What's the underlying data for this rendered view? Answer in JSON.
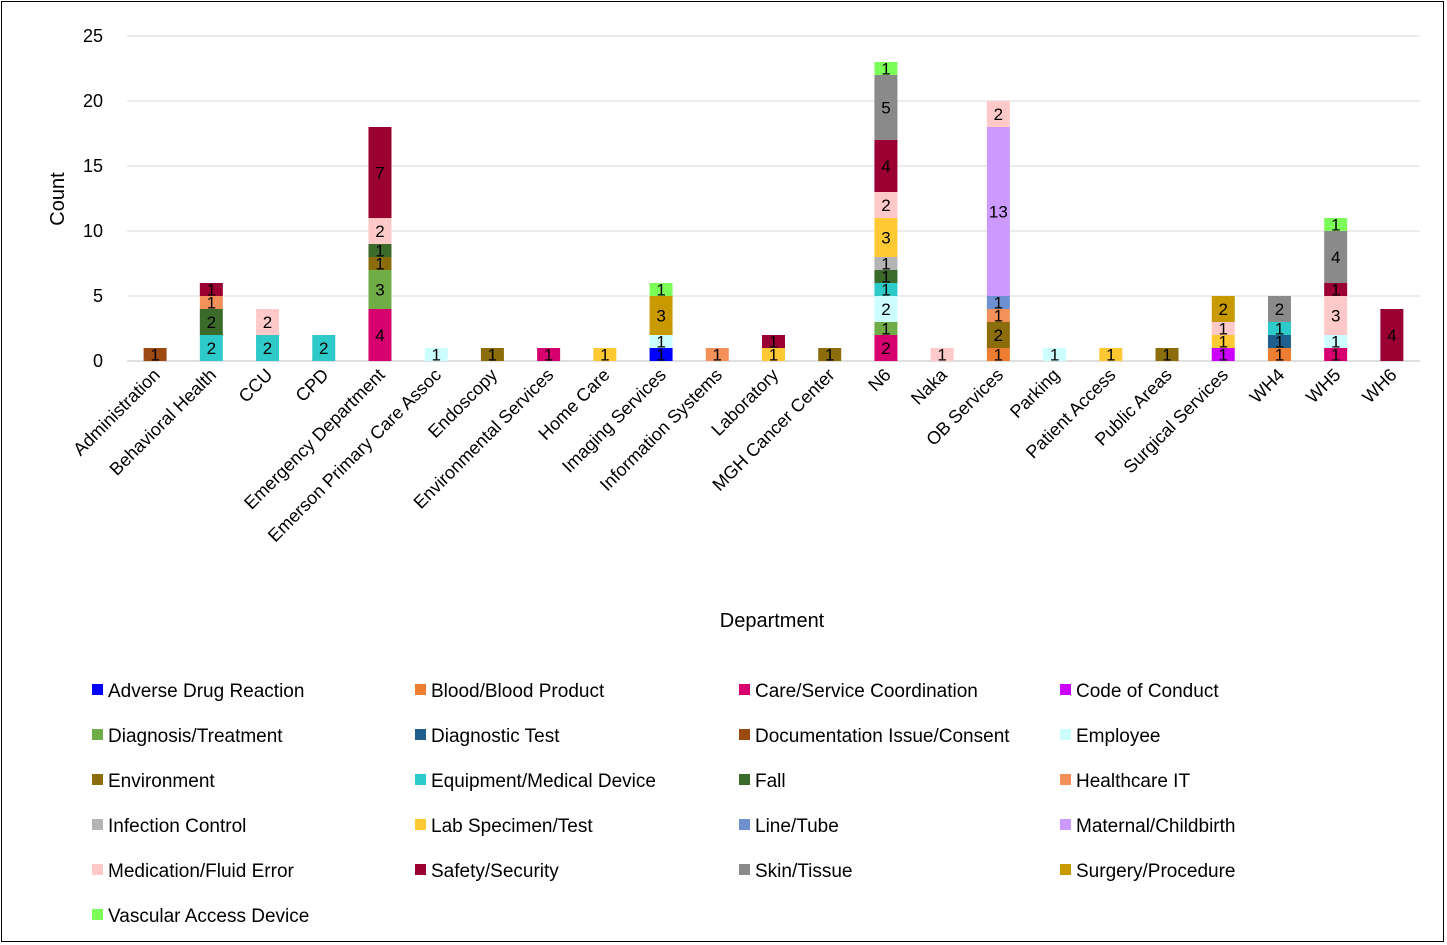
{
  "chart_data": {
    "type": "bar",
    "stacked": true,
    "xlabel": "Department",
    "ylabel": "Count",
    "ylim": [
      0,
      25
    ],
    "yticks": [
      0,
      5,
      10,
      15,
      20,
      25
    ],
    "grid": true,
    "legend_position": "bottom",
    "categories": [
      "Administration",
      "Behavioral Health",
      "CCU",
      "CPD",
      "Emergency Department",
      "Emerson Primary Care Assoc",
      "Endoscopy",
      "Environmental Services",
      "Home Care",
      "Imaging Services",
      "Information Systems",
      "Laboratory",
      "MGH Cancer Center",
      "N6",
      "Naka",
      "OB Services",
      "Parking",
      "Patient Access",
      "Public Areas",
      "Surgical Services",
      "WH4",
      "WH5",
      "WH6"
    ],
    "series": [
      {
        "name": "Adverse Drug Reaction",
        "color": "#0000ff",
        "values": [
          0,
          0,
          0,
          0,
          0,
          0,
          0,
          0,
          0,
          1,
          0,
          0,
          0,
          0,
          0,
          0,
          0,
          0,
          0,
          0,
          0,
          0,
          0
        ]
      },
      {
        "name": "Blood/Blood Product",
        "color": "#ed7d31",
        "values": [
          0,
          0,
          0,
          0,
          0,
          0,
          0,
          0,
          0,
          0,
          0,
          0,
          0,
          0,
          0,
          1,
          0,
          0,
          0,
          0,
          1,
          0,
          0
        ]
      },
      {
        "name": "Care/Service Coordination",
        "color": "#d6006f",
        "values": [
          0,
          0,
          0,
          0,
          4,
          0,
          0,
          1,
          0,
          0,
          0,
          0,
          0,
          2,
          0,
          0,
          0,
          0,
          0,
          0,
          0,
          1,
          0
        ]
      },
      {
        "name": "Code of Conduct",
        "color": "#cc00ff",
        "values": [
          0,
          0,
          0,
          0,
          0,
          0,
          0,
          0,
          0,
          0,
          0,
          0,
          0,
          0,
          0,
          0,
          0,
          0,
          0,
          1,
          0,
          0,
          0
        ]
      },
      {
        "name": "Diagnosis/Treatment",
        "color": "#70ad47",
        "values": [
          0,
          0,
          0,
          0,
          3,
          0,
          0,
          0,
          0,
          0,
          0,
          0,
          0,
          1,
          0,
          0,
          0,
          0,
          0,
          0,
          0,
          0,
          0
        ]
      },
      {
        "name": "Diagnostic Test",
        "color": "#1f5f8b",
        "values": [
          0,
          0,
          0,
          0,
          0,
          0,
          0,
          0,
          0,
          0,
          0,
          0,
          0,
          0,
          0,
          0,
          0,
          0,
          0,
          0,
          1,
          0,
          0
        ]
      },
      {
        "name": "Documentation Issue/Consent",
        "color": "#9c4a12",
        "values": [
          1,
          0,
          0,
          0,
          0,
          0,
          0,
          0,
          0,
          0,
          0,
          0,
          0,
          0,
          0,
          0,
          0,
          0,
          0,
          0,
          0,
          0,
          0
        ]
      },
      {
        "name": "Employee",
        "color": "#ccfdff",
        "values": [
          0,
          0,
          0,
          0,
          0,
          1,
          0,
          0,
          0,
          1,
          0,
          0,
          0,
          2,
          0,
          0,
          1,
          0,
          0,
          0,
          0,
          1,
          0
        ]
      },
      {
        "name": "Environment",
        "color": "#8b6d0c",
        "values": [
          0,
          0,
          0,
          0,
          1,
          0,
          1,
          0,
          0,
          0,
          0,
          0,
          1,
          0,
          0,
          2,
          0,
          0,
          1,
          0,
          0,
          0,
          0
        ]
      },
      {
        "name": "Equipment/Medical Device",
        "color": "#2ec9c9",
        "values": [
          0,
          2,
          2,
          2,
          0,
          0,
          0,
          0,
          0,
          0,
          0,
          0,
          0,
          1,
          0,
          0,
          0,
          0,
          0,
          0,
          1,
          0,
          0
        ]
      },
      {
        "name": "Fall",
        "color": "#3a6b2a",
        "values": [
          0,
          2,
          0,
          0,
          1,
          0,
          0,
          0,
          0,
          0,
          0,
          0,
          0,
          1,
          0,
          0,
          0,
          0,
          0,
          0,
          0,
          0,
          0
        ]
      },
      {
        "name": "Healthcare IT",
        "color": "#f4915a",
        "values": [
          0,
          1,
          0,
          0,
          0,
          0,
          0,
          0,
          0,
          0,
          1,
          0,
          0,
          0,
          0,
          1,
          0,
          0,
          0,
          0,
          0,
          0,
          0
        ]
      },
      {
        "name": "Infection Control",
        "color": "#b4b4b4",
        "values": [
          0,
          0,
          0,
          0,
          0,
          0,
          0,
          0,
          0,
          0,
          0,
          0,
          0,
          1,
          0,
          0,
          0,
          0,
          0,
          0,
          0,
          0,
          0
        ]
      },
      {
        "name": "Lab Specimen/Test",
        "color": "#ffc933",
        "values": [
          0,
          0,
          0,
          0,
          0,
          0,
          0,
          0,
          1,
          0,
          0,
          1,
          0,
          3,
          0,
          0,
          0,
          1,
          0,
          1,
          0,
          0,
          0
        ]
      },
      {
        "name": "Line/Tube",
        "color": "#6e8fd0",
        "values": [
          0,
          0,
          0,
          0,
          0,
          0,
          0,
          0,
          0,
          0,
          0,
          0,
          0,
          0,
          0,
          1,
          0,
          0,
          0,
          0,
          0,
          0,
          0
        ]
      },
      {
        "name": "Maternal/Childbirth",
        "color": "#cc99ff",
        "values": [
          0,
          0,
          0,
          0,
          0,
          0,
          0,
          0,
          0,
          0,
          0,
          0,
          0,
          0,
          0,
          13,
          0,
          0,
          0,
          0,
          0,
          0,
          0
        ]
      },
      {
        "name": "Medication/Fluid Error",
        "color": "#ffc9c9",
        "values": [
          0,
          0,
          2,
          0,
          2,
          0,
          0,
          0,
          0,
          0,
          0,
          0,
          0,
          2,
          1,
          2,
          0,
          0,
          0,
          1,
          0,
          3,
          0
        ]
      },
      {
        "name": "Safety/Security",
        "color": "#9b0033",
        "values": [
          0,
          1,
          0,
          0,
          7,
          0,
          0,
          0,
          0,
          0,
          0,
          1,
          0,
          4,
          0,
          0,
          0,
          0,
          0,
          0,
          0,
          1,
          4
        ]
      },
      {
        "name": "Skin/Tissue",
        "color": "#8a8a8a",
        "values": [
          0,
          0,
          0,
          0,
          0,
          0,
          0,
          0,
          0,
          0,
          0,
          0,
          0,
          5,
          0,
          0,
          0,
          0,
          0,
          0,
          2,
          4,
          0
        ]
      },
      {
        "name": "Surgery/Procedure",
        "color": "#c89a00",
        "values": [
          0,
          0,
          0,
          0,
          0,
          0,
          0,
          0,
          0,
          3,
          0,
          0,
          0,
          0,
          0,
          0,
          0,
          0,
          0,
          2,
          0,
          0,
          0
        ]
      },
      {
        "name": "Vascular Access Device",
        "color": "#7dff5a",
        "values": [
          0,
          0,
          0,
          0,
          0,
          0,
          0,
          0,
          0,
          1,
          0,
          0,
          0,
          1,
          0,
          0,
          0,
          0,
          0,
          0,
          0,
          1,
          0
        ]
      }
    ]
  }
}
